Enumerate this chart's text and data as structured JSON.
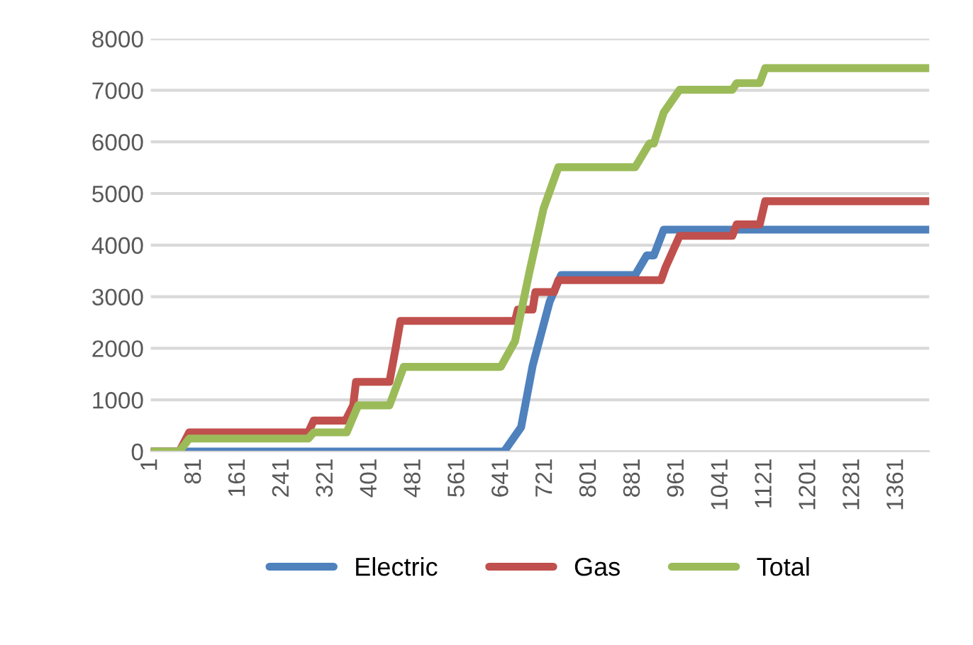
{
  "chart_data": {
    "type": "line",
    "xlim": [
      1,
      1420
    ],
    "xticks": [
      1,
      81,
      161,
      241,
      321,
      401,
      481,
      561,
      641,
      721,
      801,
      881,
      961,
      1041,
      1121,
      1201,
      1281,
      1361
    ],
    "ylim": [
      0,
      8000
    ],
    "yticks": [
      0,
      1000,
      2000,
      3000,
      4000,
      5000,
      6000,
      7000,
      8000
    ],
    "grid": "y",
    "legend": "bottom",
    "marker": "none",
    "line_style": "solid",
    "series": [
      {
        "name": "Electric",
        "color": "#4f81bd",
        "x": [
          1,
          645,
          676,
          697,
          728,
          749,
          884,
          905,
          918,
          936,
          1420
        ],
        "values": [
          0,
          0,
          470,
          1660,
          2900,
          3420,
          3420,
          3800,
          3800,
          4300,
          4300
        ]
      },
      {
        "name": "Gas",
        "color": "#c0504d",
        "x": [
          1,
          53,
          71,
          288,
          298,
          356,
          370,
          375,
          436,
          448,
          456,
          665,
          670,
          697,
          702,
          736,
          744,
          931,
          939,
          965,
          1061,
          1069,
          1111,
          1121,
          1420
        ],
        "values": [
          0,
          0,
          370,
          370,
          600,
          600,
          895,
          1350,
          1350,
          2040,
          2530,
          2530,
          2750,
          2750,
          3090,
          3090,
          3320,
          3320,
          3560,
          4180,
          4180,
          4400,
          4400,
          4850,
          4850
        ]
      },
      {
        "name": "Total",
        "color": "#9bbb59",
        "x": [
          1,
          53,
          71,
          288,
          298,
          358,
          379,
          436,
          462,
          639,
          665,
          691,
          717,
          744,
          884,
          910,
          918,
          936,
          965,
          1061,
          1069,
          1111,
          1121,
          1420
        ],
        "values": [
          0,
          0,
          250,
          250,
          370,
          370,
          895,
          895,
          1640,
          1640,
          2140,
          3470,
          4710,
          5510,
          5510,
          5970,
          5970,
          6570,
          7010,
          7010,
          7140,
          7140,
          7430,
          7430
        ]
      }
    ]
  }
}
